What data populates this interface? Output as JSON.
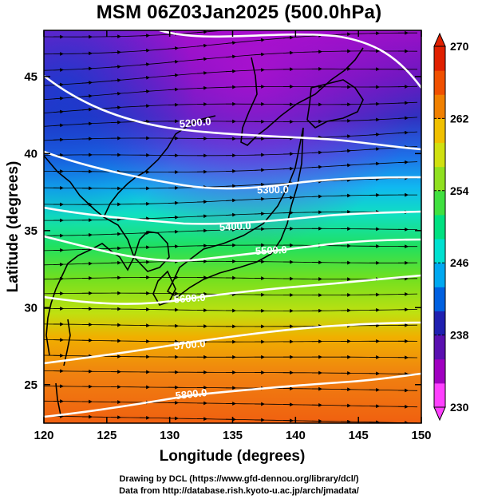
{
  "title": "MSM 06Z03Jan2025 (500.0hPa)",
  "x_axis": {
    "label": "Longitude (degrees)",
    "range": [
      120,
      150
    ],
    "ticks": [
      "120",
      "125",
      "130",
      "135",
      "140",
      "145",
      "150"
    ]
  },
  "y_axis": {
    "label": "Latitude  (degrees)",
    "range": [
      22.5,
      48
    ],
    "ticks": [
      "25",
      "30",
      "35",
      "40",
      "45"
    ]
  },
  "colorbar": {
    "range": [
      230,
      270
    ],
    "ticks": [
      "230",
      "238",
      "246",
      "254",
      "262",
      "270"
    ],
    "colors": [
      "#ff40ff",
      "#a000c0",
      "#5a10b0",
      "#2020b0",
      "#0060e0",
      "#00a8f0",
      "#00e0d0",
      "#00e080",
      "#40e040",
      "#90e020",
      "#d0e010",
      "#f0c000",
      "#f08000",
      "#f05000",
      "#e02000"
    ]
  },
  "contour_labels": [
    "5200.0",
    "5300.0",
    "5400.0",
    "5500.0",
    "5600.0",
    "5700.0",
    "5800.0"
  ],
  "credits": [
    "Drawing by DCL (https://www.gfd-dennou.org/library/dcl/)",
    "Data from http://database.rish.kyoto-u.ac.jp/arch/jmadata/"
  ]
}
